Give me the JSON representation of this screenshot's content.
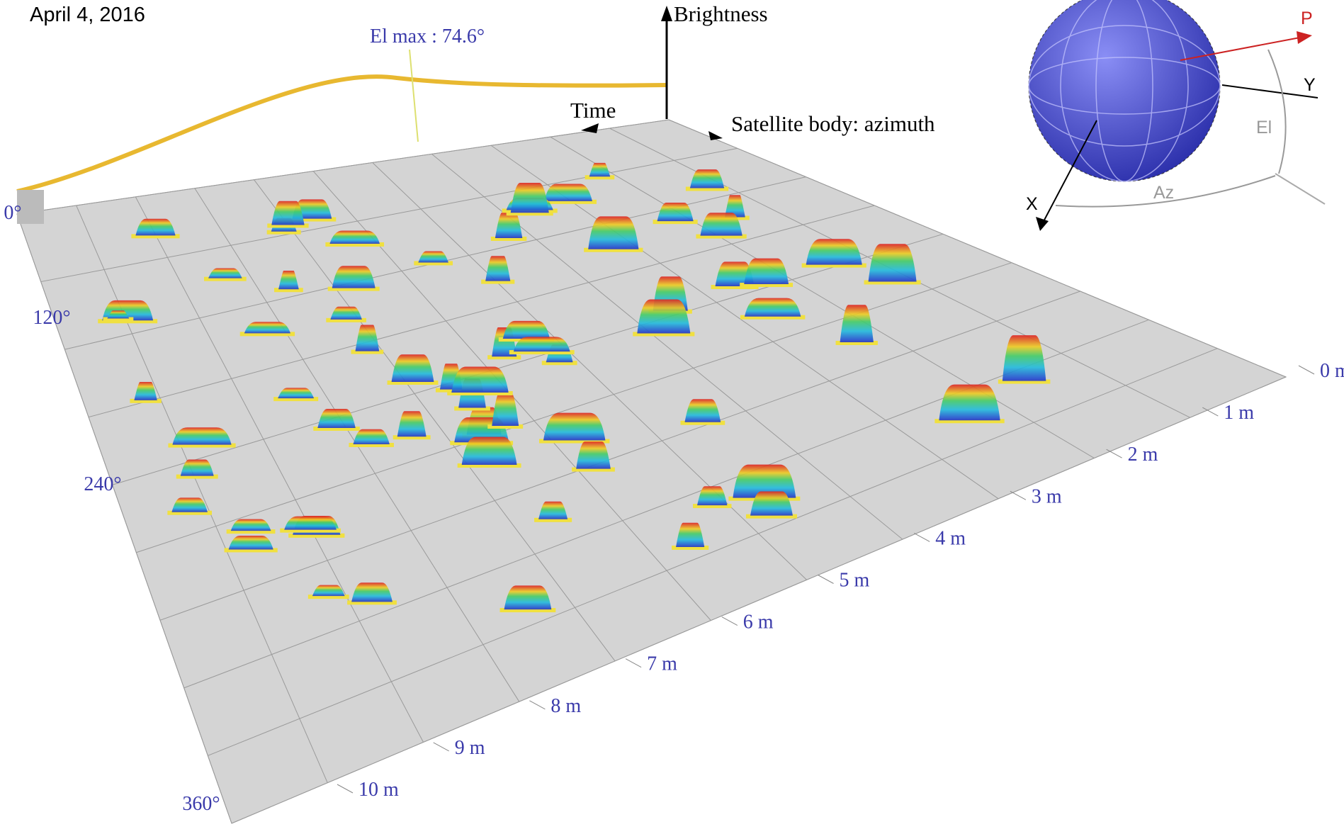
{
  "date": "April 4, 2016",
  "elevation_note": "El max : 74.6°",
  "axes": {
    "brightness": "Brightness",
    "time": "Time",
    "azimuth": "Satellite body: azimuth"
  },
  "azimuth_labels": [
    "0°",
    "120°",
    "240°",
    "360°"
  ],
  "time_labels": [
    "0 m",
    "1 m",
    "2 m",
    "3 m",
    "4 m",
    "5 m",
    "6 m",
    "7 m",
    "8 m",
    "9 m",
    "10 m"
  ],
  "inset": {
    "p": "P",
    "y": "Y",
    "x": "X",
    "el": "El",
    "az": "Az"
  }
}
